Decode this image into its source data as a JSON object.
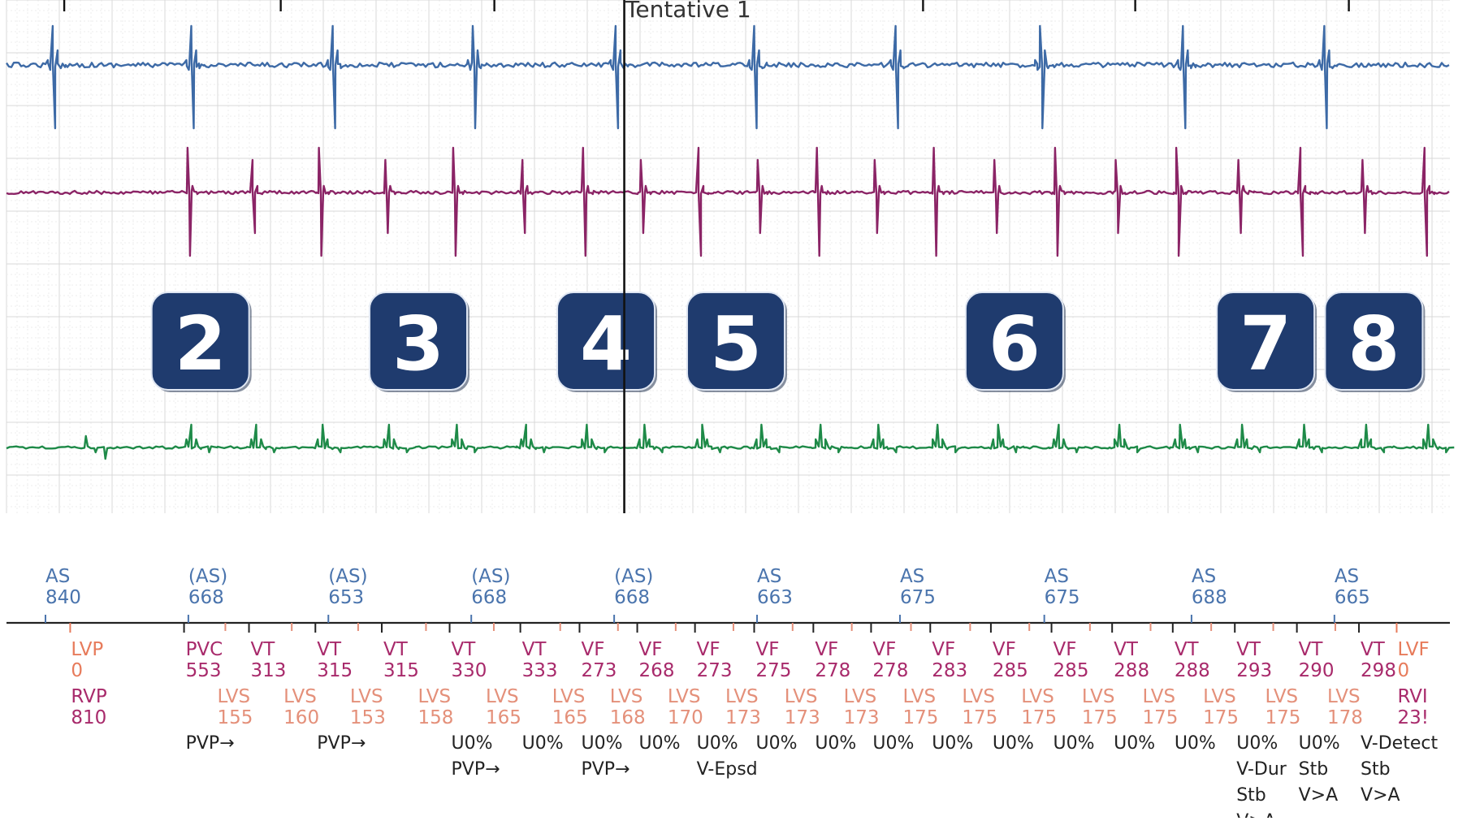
{
  "header": {
    "title": "Tentative 1"
  },
  "colors": {
    "channel1": "#3d6aa6",
    "channel2": "#8b2466",
    "channel3": "#1e8a48",
    "badge_fill": "#1f3b6e",
    "atrial_marker": "#4a74ad",
    "ventricular_marker": "#a82a6b",
    "lvs_marker": "#e4907a"
  },
  "badges": [
    {
      "label": "2",
      "ts": 0.1
    },
    {
      "label": "3",
      "ts": 0.251
    },
    {
      "label": "4",
      "ts": 0.381
    },
    {
      "label": "5",
      "ts": 0.471
    },
    {
      "label": "6",
      "ts": 0.664
    },
    {
      "label": "7",
      "ts": 0.838
    },
    {
      "label": "8",
      "ts": 0.913
    }
  ],
  "cursor": {
    "ts": 0.428
  },
  "top_ticks": [
    0.04,
    0.19,
    0.338,
    0.635,
    0.782,
    0.93
  ],
  "atrial_events": [
    {
      "label": "AS",
      "value": "840",
      "ts": 0.027
    },
    {
      "label": "(AS)",
      "value": "668",
      "ts": 0.126
    },
    {
      "label": "(AS)",
      "value": "653",
      "ts": 0.223
    },
    {
      "label": "(AS)",
      "value": "668",
      "ts": 0.322
    },
    {
      "label": "(AS)",
      "value": "668",
      "ts": 0.421
    },
    {
      "label": "AS",
      "value": "663",
      "ts": 0.52
    },
    {
      "label": "AS",
      "value": "675",
      "ts": 0.619
    },
    {
      "label": "AS",
      "value": "675",
      "ts": 0.719
    },
    {
      "label": "AS",
      "value": "688",
      "ts": 0.821
    },
    {
      "label": "AS",
      "value": "665",
      "ts": 0.92
    }
  ],
  "ventricular_events": [
    {
      "label": "PVC",
      "value": "553",
      "ts": 0.123
    },
    {
      "label": "VT",
      "value": "313",
      "ts": 0.168
    },
    {
      "label": "VT",
      "value": "315",
      "ts": 0.214
    },
    {
      "label": "VT",
      "value": "315",
      "ts": 0.26
    },
    {
      "label": "VT",
      "value": "330",
      "ts": 0.307
    },
    {
      "label": "VT",
      "value": "333",
      "ts": 0.356
    },
    {
      "label": "VF",
      "value": "273",
      "ts": 0.397
    },
    {
      "label": "VF",
      "value": "268",
      "ts": 0.437
    },
    {
      "label": "VF",
      "value": "273",
      "ts": 0.477
    },
    {
      "label": "VF",
      "value": "275",
      "ts": 0.518
    },
    {
      "label": "VF",
      "value": "278",
      "ts": 0.559
    },
    {
      "label": "VF",
      "value": "278",
      "ts": 0.599
    },
    {
      "label": "VF",
      "value": "283",
      "ts": 0.64
    },
    {
      "label": "VF",
      "value": "285",
      "ts": 0.682
    },
    {
      "label": "VF",
      "value": "285",
      "ts": 0.724
    },
    {
      "label": "VT",
      "value": "288",
      "ts": 0.766
    },
    {
      "label": "VT",
      "value": "288",
      "ts": 0.808
    },
    {
      "label": "VT",
      "value": "293",
      "ts": 0.851
    },
    {
      "label": "VT",
      "value": "290",
      "ts": 0.894
    },
    {
      "label": "VT",
      "value": "298",
      "ts": 0.937
    }
  ],
  "lvs_events": [
    {
      "label": "LVS",
      "value": "155",
      "ts": 0.146
    },
    {
      "label": "LVS",
      "value": "160",
      "ts": 0.192
    },
    {
      "label": "LVS",
      "value": "153",
      "ts": 0.238
    },
    {
      "label": "LVS",
      "value": "158",
      "ts": 0.285
    },
    {
      "label": "LVS",
      "value": "165",
      "ts": 0.332
    },
    {
      "label": "LVS",
      "value": "165",
      "ts": 0.378
    },
    {
      "label": "LVS",
      "value": "168",
      "ts": 0.418
    },
    {
      "label": "LVS",
      "value": "170",
      "ts": 0.458
    },
    {
      "label": "LVS",
      "value": "173",
      "ts": 0.498
    },
    {
      "label": "LVS",
      "value": "173",
      "ts": 0.539
    },
    {
      "label": "LVS",
      "value": "173",
      "ts": 0.58
    },
    {
      "label": "LVS",
      "value": "175",
      "ts": 0.621
    },
    {
      "label": "LVS",
      "value": "175",
      "ts": 0.662
    },
    {
      "label": "LVS",
      "value": "175",
      "ts": 0.703
    },
    {
      "label": "LVS",
      "value": "175",
      "ts": 0.745
    },
    {
      "label": "LVS",
      "value": "175",
      "ts": 0.787
    },
    {
      "label": "LVS",
      "value": "175",
      "ts": 0.829
    },
    {
      "label": "LVS",
      "value": "175",
      "ts": 0.872
    },
    {
      "label": "LVS",
      "value": "178",
      "ts": 0.915
    }
  ],
  "pace_events_left": [
    {
      "line1": "LVP",
      "line2": "0",
      "line3": "RVP",
      "line4": "810",
      "ts": 0.043
    }
  ],
  "pace_events_right": [
    {
      "line1": "LVF",
      "line2": "0",
      "line3": "RVI",
      "line4": "23!",
      "ts": 0.962
    }
  ],
  "annotations": [
    {
      "ts": 0.123,
      "lines": [
        "PVP→"
      ]
    },
    {
      "ts": 0.214,
      "lines": [
        "PVP→"
      ]
    },
    {
      "ts": 0.307,
      "lines": [
        "U0%",
        "PVP→"
      ]
    },
    {
      "ts": 0.356,
      "lines": [
        "U0%"
      ]
    },
    {
      "ts": 0.397,
      "lines": [
        "U0%",
        "PVP→"
      ]
    },
    {
      "ts": 0.437,
      "lines": [
        "U0%"
      ]
    },
    {
      "ts": 0.477,
      "lines": [
        "U0%",
        "V-Epsd"
      ]
    },
    {
      "ts": 0.518,
      "lines": [
        "U0%"
      ]
    },
    {
      "ts": 0.559,
      "lines": [
        "U0%"
      ]
    },
    {
      "ts": 0.599,
      "lines": [
        "U0%"
      ]
    },
    {
      "ts": 0.64,
      "lines": [
        "U0%"
      ]
    },
    {
      "ts": 0.682,
      "lines": [
        "U0%"
      ]
    },
    {
      "ts": 0.724,
      "lines": [
        "U0%"
      ]
    },
    {
      "ts": 0.766,
      "lines": [
        "U0%"
      ]
    },
    {
      "ts": 0.808,
      "lines": [
        "U0%"
      ]
    },
    {
      "ts": 0.851,
      "lines": [
        "U0%",
        "V-Dur",
        "Stb",
        "V>A"
      ]
    },
    {
      "ts": 0.894,
      "lines": [
        "U0%",
        "Stb",
        "V>A"
      ]
    },
    {
      "ts": 0.937,
      "lines": [
        "V-Detect",
        "Stb",
        "V>A"
      ]
    }
  ],
  "channel1_beats": [
    0.032,
    0.128,
    0.226,
    0.323,
    0.422,
    0.518,
    0.616,
    0.716,
    0.815,
    0.913
  ],
  "channel2_beats": [
    0.126,
    0.171,
    0.217,
    0.263,
    0.31,
    0.358,
    0.4,
    0.44,
    0.48,
    0.521,
    0.562,
    0.602,
    0.643,
    0.685,
    0.727,
    0.769,
    0.811,
    0.854,
    0.897,
    0.94,
    0.983
  ],
  "channel3_beats": [
    0.055,
    0.128,
    0.173,
    0.219,
    0.265,
    0.312,
    0.36,
    0.402,
    0.442,
    0.482,
    0.523,
    0.564,
    0.604,
    0.645,
    0.687,
    0.729,
    0.771,
    0.813,
    0.856,
    0.899,
    0.942,
    0.985
  ]
}
